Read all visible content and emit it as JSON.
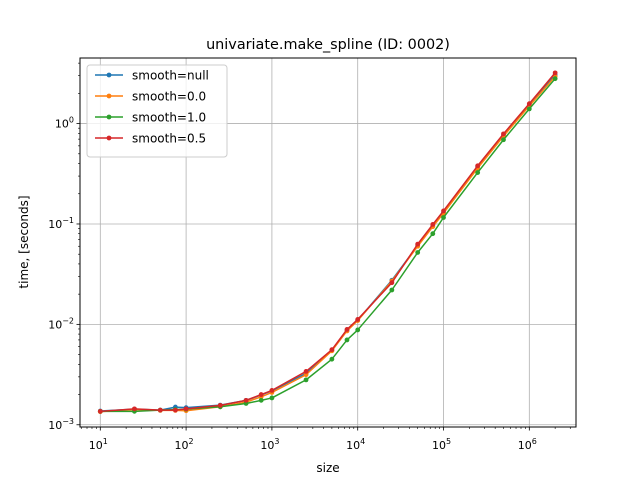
{
  "chart_data": {
    "type": "line",
    "title": "univariate.make_spline (ID: 0002)",
    "xlabel": "size",
    "ylabel": "time, [seconds]",
    "xscale": "log",
    "yscale": "log",
    "xlim": [
      5.8,
      3500000
    ],
    "ylim": [
      0.00095,
      4.5
    ],
    "grid": true,
    "legend_position": "top-left",
    "x_major_ticks": [
      {
        "value": 10,
        "base": "10",
        "exp": "1"
      },
      {
        "value": 100,
        "base": "10",
        "exp": "2"
      },
      {
        "value": 1000,
        "base": "10",
        "exp": "3"
      },
      {
        "value": 10000,
        "base": "10",
        "exp": "4"
      },
      {
        "value": 100000,
        "base": "10",
        "exp": "5"
      },
      {
        "value": 1000000,
        "base": "10",
        "exp": "6"
      }
    ],
    "y_major_ticks": [
      {
        "value": 0.001,
        "base": "10",
        "exp": "−3"
      },
      {
        "value": 0.01,
        "base": "10",
        "exp": "−2"
      },
      {
        "value": 0.1,
        "base": "10",
        "exp": "−1"
      },
      {
        "value": 1,
        "base": "10",
        "exp": "0"
      }
    ],
    "x": [
      10,
      25,
      50,
      75,
      100,
      250,
      500,
      750,
      1000,
      2500,
      5000,
      7500,
      10000,
      25000,
      50000,
      75000,
      100000,
      250000,
      500000,
      1000000,
      2000000
    ],
    "series": [
      {
        "name": "smooth=null",
        "color": "#1f77b4",
        "values": [
          0.00137,
          0.00143,
          0.0014,
          0.0015,
          0.00148,
          0.00157,
          0.00175,
          0.00198,
          0.00218,
          0.00325,
          0.0055,
          0.0087,
          0.011,
          0.0275,
          0.061,
          0.096,
          0.13,
          0.37,
          0.77,
          1.55,
          3.05
        ]
      },
      {
        "name": "smooth=0.0",
        "color": "#ff7f0e",
        "values": [
          0.00135,
          0.00142,
          0.00139,
          0.00139,
          0.00138,
          0.00151,
          0.00168,
          0.0019,
          0.0021,
          0.00315,
          0.00545,
          0.0086,
          0.0109,
          0.027,
          0.06,
          0.094,
          0.128,
          0.36,
          0.75,
          1.5,
          2.95
        ]
      },
      {
        "name": "smooth=1.0",
        "color": "#2ca02c",
        "values": [
          0.00136,
          0.00136,
          0.0014,
          0.00142,
          0.00143,
          0.00151,
          0.00163,
          0.00175,
          0.00185,
          0.0028,
          0.0045,
          0.007,
          0.0088,
          0.022,
          0.052,
          0.08,
          0.116,
          0.325,
          0.69,
          1.4,
          2.8
        ]
      },
      {
        "name": "smooth=0.5",
        "color": "#d62728",
        "values": [
          0.00136,
          0.00144,
          0.0014,
          0.0014,
          0.00144,
          0.00156,
          0.00175,
          0.002,
          0.0022,
          0.0034,
          0.0056,
          0.0089,
          0.0112,
          0.026,
          0.063,
          0.099,
          0.135,
          0.38,
          0.79,
          1.58,
          3.2
        ]
      }
    ]
  }
}
